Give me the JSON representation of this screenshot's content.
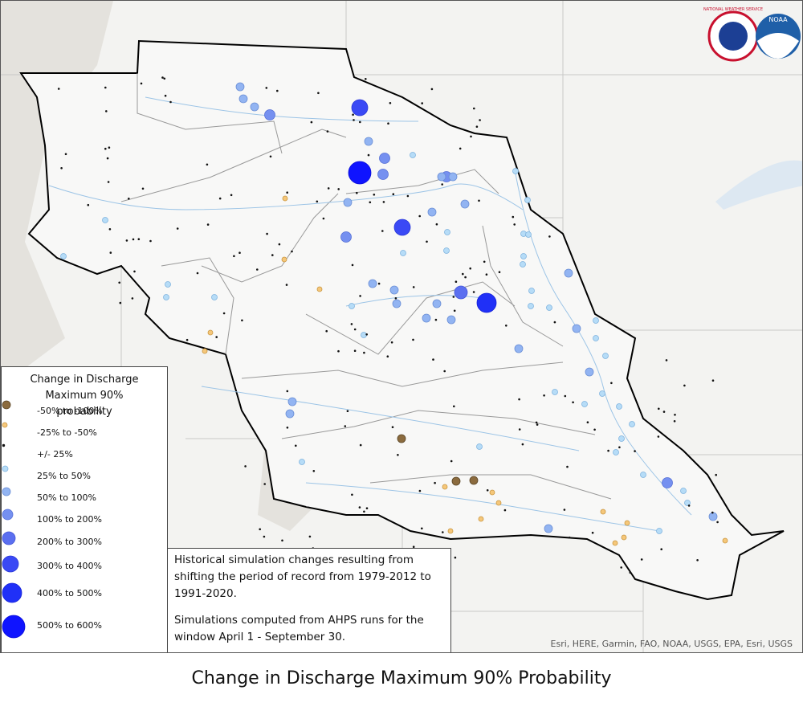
{
  "logos": [
    "NATIONAL WEATHER SERVICE",
    "NOAA"
  ],
  "legend": {
    "title": "Change in Discharge Maximum 90% probability",
    "items": [
      "-50% to -100%",
      "-25% to -50%",
      "+/- 25%",
      "25% to 50%",
      "50% to 100%",
      "100% to 200%",
      "200% to 300%",
      "300% to 400%",
      "400% to 500%",
      "500% to 600%"
    ]
  },
  "note": {
    "paragraphs": [
      "Historical simulation changes resulting from shifting the period of record from 1979-2012 to 1991-2020.",
      "Simulations computed from AHPS runs for the window April 1 - September 30."
    ]
  },
  "attribution": "Esri, HERE, Garmin, FAO, NOAA, USGS, EPA, Esri, USGS",
  "caption": "Change in Discharge Maximum 90% Probability"
}
